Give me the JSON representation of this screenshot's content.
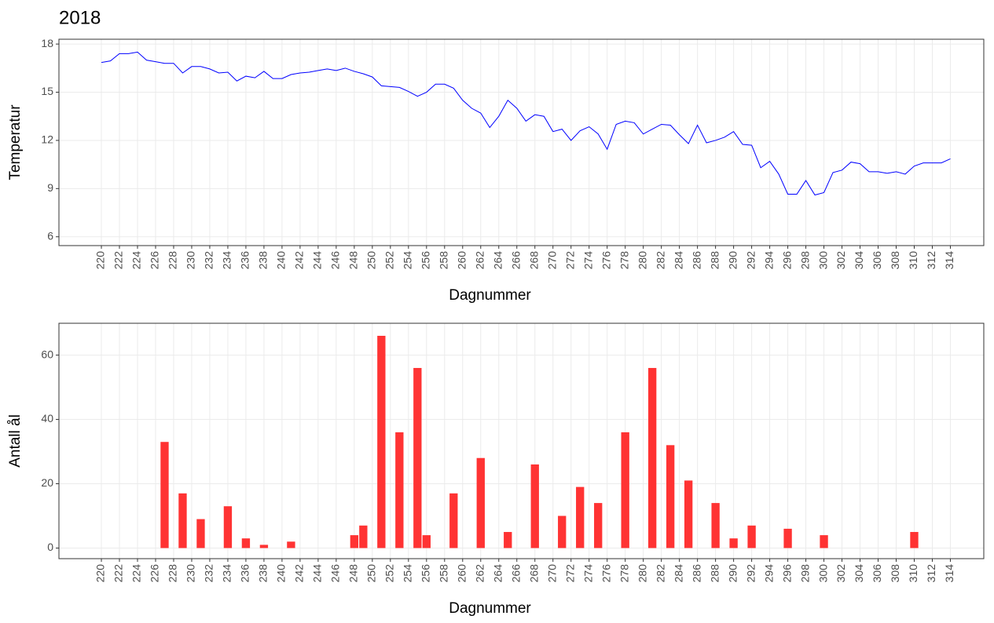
{
  "chart_data": [
    {
      "type": "line",
      "title": "2018",
      "xlabel": "Dagnummer",
      "ylabel": "Temperatur",
      "x": [
        220,
        221,
        222,
        223,
        224,
        225,
        226,
        227,
        228,
        229,
        230,
        231,
        232,
        233,
        234,
        235,
        236,
        237,
        238,
        239,
        240,
        241,
        242,
        243,
        244,
        245,
        246,
        247,
        248,
        249,
        250,
        251,
        252,
        253,
        254,
        255,
        256,
        257,
        258,
        259,
        260,
        261,
        262,
        263,
        264,
        265,
        266,
        267,
        268,
        269,
        270,
        271,
        272,
        273,
        274,
        275,
        276,
        277,
        278,
        279,
        280,
        281,
        282,
        283,
        284,
        285,
        286,
        287,
        288,
        289,
        290,
        291,
        292,
        293,
        294,
        295,
        296,
        297,
        298,
        299,
        300,
        301,
        302,
        303,
        304,
        305,
        306,
        307,
        308,
        309,
        310,
        311,
        312,
        313,
        314
      ],
      "series": [
        {
          "name": "Temperatur",
          "color": "#0000ff",
          "values": [
            16.85,
            16.95,
            17.4,
            17.4,
            17.5,
            17.0,
            16.9,
            16.8,
            16.8,
            16.2,
            16.6,
            16.6,
            16.45,
            16.2,
            16.25,
            15.7,
            16.0,
            15.9,
            16.3,
            15.85,
            15.85,
            16.1,
            16.2,
            16.25,
            16.35,
            16.45,
            16.35,
            16.5,
            16.3,
            16.15,
            15.95,
            15.4,
            15.35,
            15.3,
            15.05,
            14.75,
            15.0,
            15.5,
            15.5,
            15.25,
            14.5,
            14.0,
            13.7,
            12.8,
            13.5,
            14.5,
            14.0,
            13.2,
            13.6,
            13.5,
            12.55,
            12.7,
            12.0,
            12.6,
            12.85,
            12.4,
            11.45,
            13.0,
            13.2,
            13.1,
            12.4,
            12.7,
            13.0,
            12.95,
            12.35,
            11.8,
            12.95,
            11.85,
            12.0,
            12.2,
            12.55,
            11.75,
            11.7,
            10.3,
            10.7,
            9.9,
            8.65,
            8.65,
            9.5,
            8.6,
            8.75,
            10.0,
            10.15,
            10.65,
            10.55,
            10.05,
            10.05,
            9.95,
            10.05,
            9.9,
            10.4,
            10.6,
            10.6,
            10.6,
            10.85
          ]
        }
      ],
      "xlim": [
        215.3,
        317.7
      ],
      "xticks": [
        220,
        222,
        224,
        226,
        228,
        230,
        232,
        234,
        236,
        238,
        240,
        242,
        244,
        246,
        248,
        250,
        252,
        254,
        256,
        258,
        260,
        262,
        264,
        266,
        268,
        270,
        272,
        274,
        276,
        278,
        280,
        282,
        284,
        286,
        288,
        290,
        292,
        294,
        296,
        298,
        300,
        302,
        304,
        306,
        308,
        310,
        312,
        314
      ],
      "ylim": [
        5.45,
        18.3
      ],
      "yticks": [
        6,
        9,
        12,
        15,
        18
      ],
      "grid": true
    },
    {
      "type": "bar",
      "xlabel": "Dagnummer",
      "ylabel": "Antall ål",
      "x": [
        227,
        229,
        231,
        234,
        236,
        238,
        241,
        248,
        249,
        251,
        253,
        255,
        256,
        259,
        262,
        265,
        268,
        271,
        273,
        275,
        278,
        281,
        283,
        285,
        288,
        290,
        292,
        296,
        300,
        310
      ],
      "series": [
        {
          "name": "Antall ål",
          "color": "#ff3333",
          "values": [
            33,
            17,
            9,
            13,
            3,
            1,
            2,
            4,
            7,
            66,
            36,
            56,
            4,
            17,
            28,
            5,
            26,
            10,
            19,
            14,
            36,
            56,
            32,
            21,
            14,
            3,
            7,
            6,
            4,
            5
          ]
        }
      ],
      "xlim": [
        215.3,
        317.7
      ],
      "xticks": [
        220,
        222,
        224,
        226,
        228,
        230,
        232,
        234,
        236,
        238,
        240,
        242,
        244,
        246,
        248,
        250,
        252,
        254,
        256,
        258,
        260,
        262,
        264,
        266,
        268,
        270,
        272,
        274,
        276,
        278,
        280,
        282,
        284,
        286,
        288,
        290,
        292,
        294,
        296,
        298,
        300,
        302,
        304,
        306,
        308,
        310,
        312,
        314
      ],
      "ylim": [
        -3.3,
        69.9
      ],
      "yticks": [
        0,
        20,
        40,
        60
      ],
      "grid": true
    }
  ]
}
